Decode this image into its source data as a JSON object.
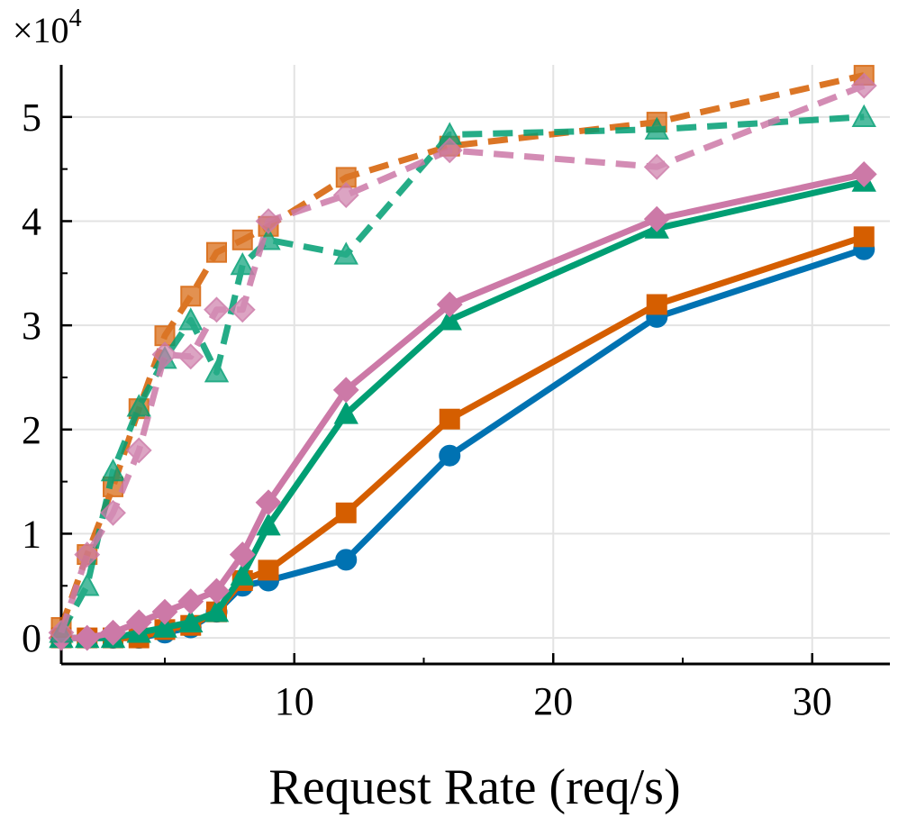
{
  "chart_data": {
    "type": "line",
    "title": "",
    "xlabel": "Request Rate (req/s)",
    "ylabel": "",
    "y_multiplier_label": "×10",
    "y_multiplier_exponent": "4",
    "xlim": [
      1,
      33
    ],
    "ylim": [
      -0.25,
      5.5
    ],
    "xticks": [
      10,
      20,
      30
    ],
    "yticks": [
      0,
      1,
      2,
      3,
      4,
      5
    ],
    "grid": true,
    "legend": "none",
    "series": [
      {
        "color": "#0072B2",
        "marker": "circle",
        "linestyle": "solid",
        "x": [
          1,
          2,
          3,
          4,
          5,
          6,
          7,
          8,
          9,
          12,
          16,
          24,
          32
        ],
        "y": [
          0.0,
          0.0,
          0.0,
          0.0,
          0.05,
          0.1,
          0.25,
          0.5,
          0.55,
          0.75,
          1.75,
          3.08,
          3.73
        ]
      },
      {
        "color": "#D55E00",
        "marker": "square",
        "linestyle": "solid",
        "x": [
          1,
          2,
          3,
          4,
          5,
          6,
          7,
          8,
          9,
          12,
          16,
          24,
          32
        ],
        "y": [
          0.0,
          0.0,
          0.0,
          0.0,
          0.08,
          0.12,
          0.25,
          0.55,
          0.65,
          1.2,
          2.1,
          3.2,
          3.85
        ]
      },
      {
        "color": "#009E73",
        "marker": "triangle",
        "linestyle": "solid",
        "x": [
          1,
          2,
          3,
          4,
          5,
          6,
          7,
          8,
          9,
          12,
          16,
          24,
          32
        ],
        "y": [
          0.0,
          0.0,
          0.0,
          0.05,
          0.1,
          0.15,
          0.25,
          0.6,
          1.08,
          2.15,
          3.05,
          3.93,
          4.38
        ]
      },
      {
        "color": "#CC79A7",
        "marker": "diamond",
        "linestyle": "solid",
        "x": [
          1,
          2,
          3,
          4,
          5,
          6,
          7,
          8,
          9,
          12,
          16,
          24,
          32
        ],
        "y": [
          0.0,
          0.0,
          0.05,
          0.15,
          0.25,
          0.35,
          0.45,
          0.8,
          1.3,
          2.38,
          3.2,
          4.02,
          4.45
        ]
      },
      {
        "color": "#D55E00",
        "marker": "square",
        "linestyle": "dashed",
        "x": [
          1,
          2,
          3,
          4,
          5,
          6,
          7,
          8,
          9,
          12,
          16,
          24,
          32
        ],
        "y": [
          0.1,
          0.8,
          1.45,
          2.2,
          2.9,
          3.28,
          3.7,
          3.82,
          3.95,
          4.42,
          4.72,
          4.95,
          5.4
        ]
      },
      {
        "color": "#009E73",
        "marker": "triangle",
        "linestyle": "dashed",
        "x": [
          1,
          2,
          3,
          4,
          5,
          6,
          7,
          8,
          9,
          12,
          16,
          24,
          32
        ],
        "y": [
          0.05,
          0.5,
          1.6,
          2.22,
          2.68,
          3.05,
          2.55,
          3.58,
          3.82,
          3.68,
          4.83,
          4.88,
          5.0
        ]
      },
      {
        "color": "#CC79A7",
        "marker": "diamond",
        "linestyle": "dashed",
        "x": [
          1,
          2,
          3,
          4,
          5,
          6,
          7,
          8,
          9,
          12,
          16,
          24,
          32
        ],
        "y": [
          0.05,
          0.8,
          1.2,
          1.8,
          2.72,
          2.7,
          3.15,
          3.15,
          4.0,
          4.25,
          4.68,
          4.52,
          5.3
        ]
      }
    ]
  }
}
